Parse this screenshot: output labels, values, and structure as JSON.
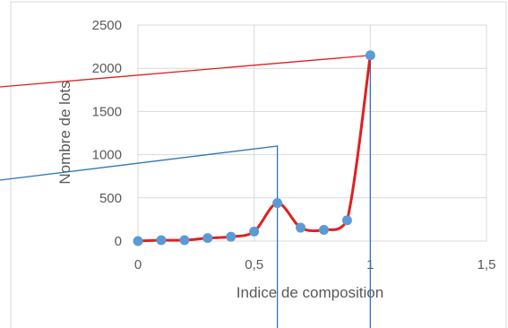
{
  "chart_data": {
    "type": "scatter",
    "title": "",
    "xlabel": "Indice de composition",
    "ylabel": "Nombre de lots",
    "xlim": [
      0,
      1.5
    ],
    "ylim": [
      0,
      2500
    ],
    "x_ticks": [
      "0",
      "0,5",
      "1",
      "1,5"
    ],
    "y_ticks": [
      "0",
      "500",
      "1000",
      "1500",
      "2000",
      "2500"
    ],
    "grid": true,
    "series": [
      {
        "color": "#e02020",
        "marker_color": "#5b9bd5",
        "smooth": true,
        "x": [
          0,
          0.1,
          0.2,
          0.3,
          0.4,
          0.5,
          0.6,
          0.7,
          0.8,
          0.9,
          1.0
        ],
        "y": [
          0,
          10,
          10,
          35,
          50,
          110,
          440,
          155,
          130,
          240,
          2150
        ]
      }
    ]
  }
}
